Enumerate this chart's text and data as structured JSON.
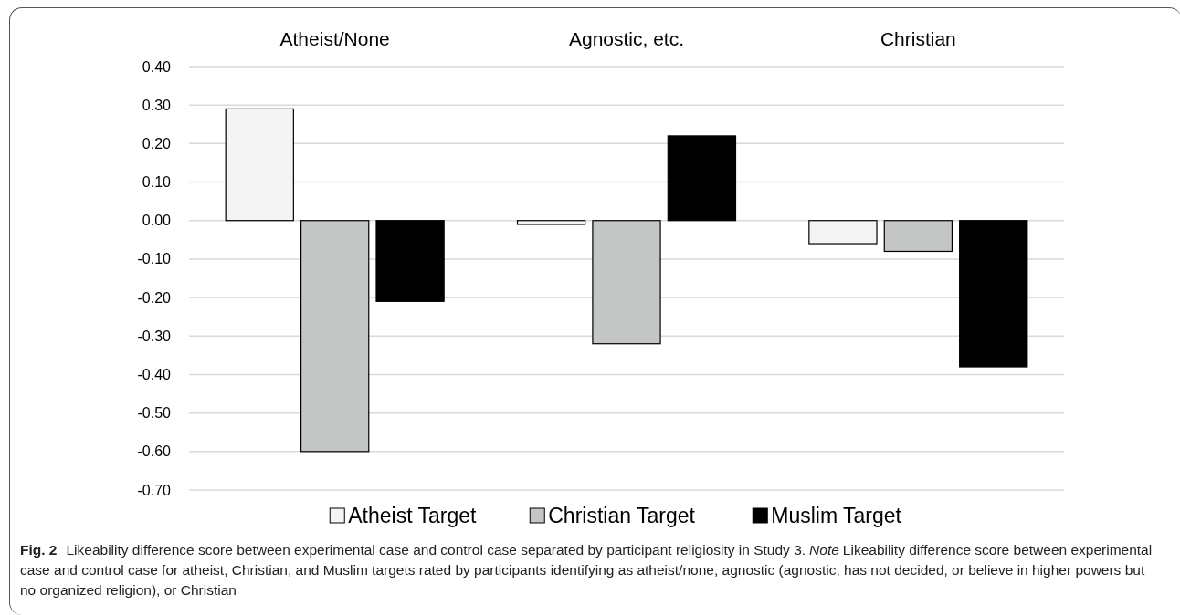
{
  "chart_data": {
    "type": "bar",
    "categories": [
      "Atheist/None",
      "Agnostic, etc.",
      "Christian"
    ],
    "series": [
      {
        "name": "Atheist Target",
        "color": "#f3f4f3",
        "values": [
          0.29,
          -0.01,
          -0.06
        ]
      },
      {
        "name": "Christian Target",
        "color": "#c4c5c5",
        "values": [
          -0.6,
          -0.32,
          -0.08
        ]
      },
      {
        "name": "Muslim Target",
        "color": "#000000",
        "values": [
          -0.21,
          0.22,
          -0.38
        ]
      }
    ],
    "ylim": [
      -0.7,
      0.4
    ],
    "yticks": [
      {
        "value": -0.7,
        "label": "-0.70"
      },
      {
        "value": -0.6,
        "label": "-0.60"
      },
      {
        "value": -0.5,
        "label": "-0.50"
      },
      {
        "value": -0.4,
        "label": "-0.40"
      },
      {
        "value": -0.3,
        "label": "-0.30"
      },
      {
        "value": -0.2,
        "label": "-0.20"
      },
      {
        "value": -0.1,
        "label": "-0.10"
      },
      {
        "value": 0,
        "label": "0.00"
      },
      {
        "value": 0.1,
        "label": "0.10"
      },
      {
        "value": 0.2,
        "label": "0.20"
      },
      {
        "value": 0.3,
        "label": "0.30"
      },
      {
        "value": 0.4,
        "label": "0.40"
      }
    ],
    "grid": "y",
    "legend": "bottom",
    "annotations": [
      "Fig. 2",
      "Likeability difference score between experimental case and control case separated by participant religiosity in Study 3.",
      "Note",
      "Likeability difference score between experimental case and control case for atheist, Christian, and Muslim targets rated by participants identifying as atheist/none, agnostic (agnostic, has not decided, or believe in higher powers but no organized religion), or Christian"
    ]
  }
}
